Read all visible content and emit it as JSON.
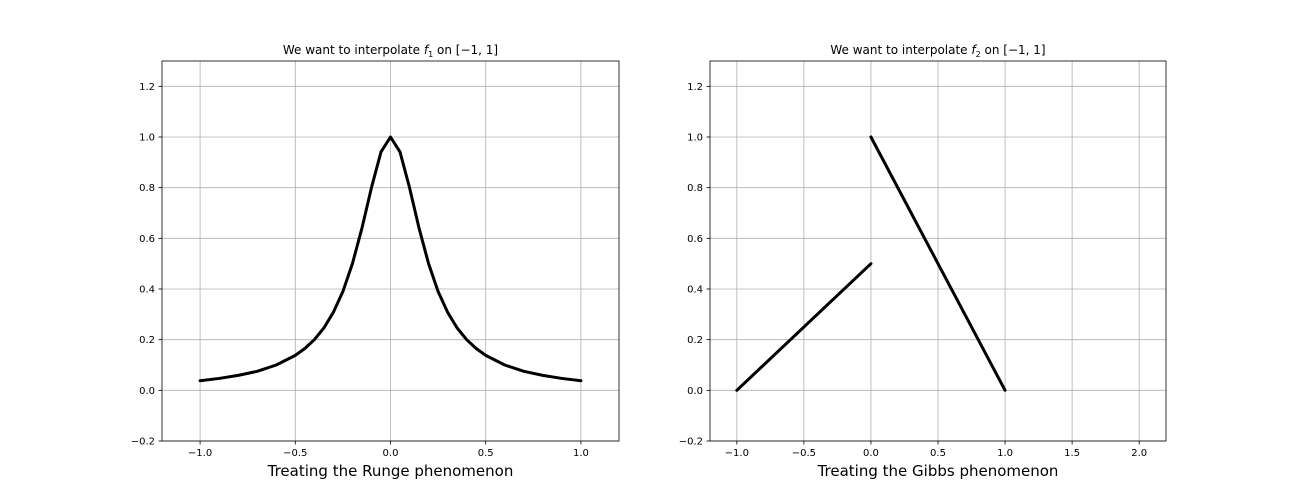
{
  "chart_data": [
    {
      "type": "line",
      "title": "We want to interpolate f1 on [−1, 1]",
      "title_parts": {
        "prefix": "We want to interpolate ",
        "fn": "f",
        "sub": "1",
        "middle": " on ",
        "interval": "[−1, 1]"
      },
      "xlabel": "Treating the Runge phenomenon",
      "ylabel": "",
      "xlim": [
        -1.2,
        1.2
      ],
      "ylim": [
        -0.2,
        1.3
      ],
      "xticks": [
        -1.0,
        -0.5,
        0.0,
        0.5,
        1.0
      ],
      "xtick_labels": [
        "−1.0",
        "−0.5",
        "0.0",
        "0.5",
        "1.0"
      ],
      "yticks": [
        -0.2,
        0.0,
        0.2,
        0.4,
        0.6,
        0.8,
        1.0,
        1.2
      ],
      "ytick_labels": [
        "−0.2",
        "0.0",
        "0.2",
        "0.4",
        "0.6",
        "0.8",
        "1.0",
        "1.2"
      ],
      "grid": true,
      "series": [
        {
          "color": "#000000",
          "x": [
            -1.0,
            -0.9,
            -0.8,
            -0.7,
            -0.6,
            -0.5,
            -0.45,
            -0.4,
            -0.35,
            -0.3,
            -0.25,
            -0.2,
            -0.15,
            -0.1,
            -0.05,
            0.0,
            0.05,
            0.1,
            0.15,
            0.2,
            0.25,
            0.3,
            0.35,
            0.4,
            0.45,
            0.5,
            0.6,
            0.7,
            0.8,
            0.9,
            1.0
          ],
          "y": [
            0.038,
            0.047,
            0.059,
            0.075,
            0.1,
            0.138,
            0.165,
            0.2,
            0.246,
            0.308,
            0.39,
            0.5,
            0.64,
            0.8,
            0.941,
            1.0,
            0.941,
            0.8,
            0.64,
            0.5,
            0.39,
            0.308,
            0.246,
            0.2,
            0.165,
            0.138,
            0.1,
            0.075,
            0.059,
            0.047,
            0.038
          ]
        }
      ]
    },
    {
      "type": "line",
      "title": "We want to interpolate f2 on [−1, 1]",
      "title_parts": {
        "prefix": "We want to interpolate ",
        "fn": "f",
        "sub": "2",
        "middle": " on ",
        "interval": "[−1, 1]"
      },
      "xlabel": "Treating the Gibbs phenomenon",
      "ylabel": "",
      "xlim": [
        -1.2,
        2.2
      ],
      "ylim": [
        -0.2,
        1.3
      ],
      "xticks": [
        -1.0,
        -0.5,
        0.0,
        0.5,
        1.0,
        1.5,
        2.0
      ],
      "xtick_labels": [
        "−1.0",
        "−0.5",
        "0.0",
        "0.5",
        "1.0",
        "1.5",
        "2.0"
      ],
      "yticks": [
        -0.2,
        0.0,
        0.2,
        0.4,
        0.6,
        0.8,
        1.0,
        1.2
      ],
      "ytick_labels": [
        "−0.2",
        "0.0",
        "0.2",
        "0.4",
        "0.6",
        "0.8",
        "1.0",
        "1.2"
      ],
      "grid": true,
      "series": [
        {
          "color": "#000000",
          "x": [
            -1.0,
            0.0
          ],
          "y": [
            0.0,
            0.5
          ]
        },
        {
          "color": "#000000",
          "x": [
            0.0,
            1.0
          ],
          "y": [
            1.0,
            0.0
          ]
        }
      ]
    }
  ]
}
